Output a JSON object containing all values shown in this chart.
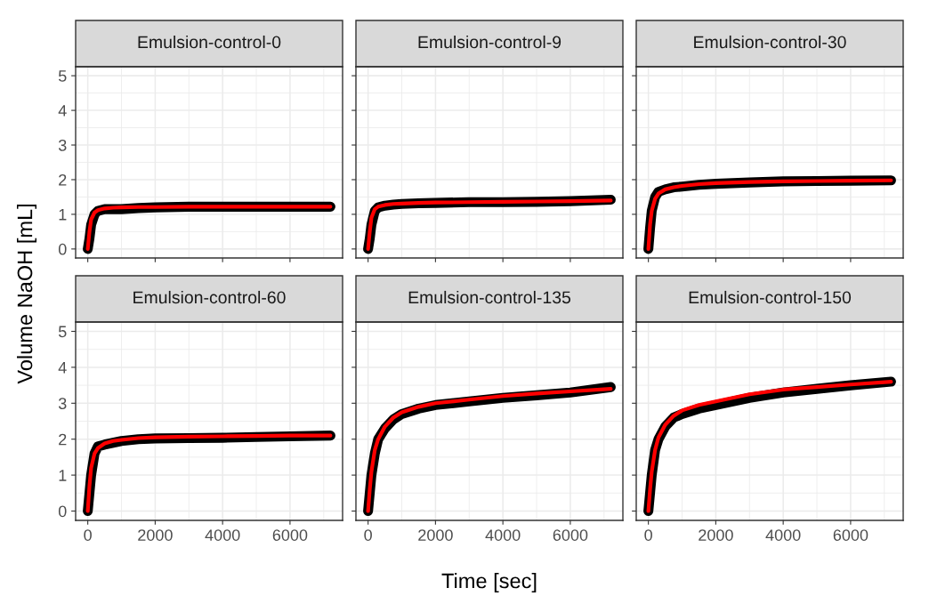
{
  "chart_data": [
    {
      "type": "line",
      "title": "Emulsion-control-0",
      "ylabel": "Volume NaOH [mL]",
      "x": [
        0,
        50,
        100,
        200,
        300,
        500,
        750,
        1000,
        1500,
        2000,
        3000,
        4000,
        5000,
        6000,
        7200
      ],
      "xlim": [
        -360,
        7560
      ],
      "xticks": [
        0,
        2000,
        4000,
        6000
      ],
      "ylim": [
        -0.26,
        5.26
      ],
      "yticks": [
        0,
        1,
        2,
        3,
        4,
        5
      ],
      "grid": true,
      "tick_labels": "y",
      "series": [
        {
          "color": "#000000",
          "values": [
            0,
            0.3,
            0.7,
            1.0,
            1.1,
            1.15,
            1.15,
            1.15,
            1.18,
            1.2,
            1.22,
            1.22,
            1.22,
            1.22,
            1.22
          ]
        },
        {
          "color": "#ff0000",
          "values": [
            0,
            0.5,
            0.85,
            1.05,
            1.12,
            1.17,
            1.19,
            1.2,
            1.21,
            1.21,
            1.22,
            1.22,
            1.22,
            1.22,
            1.22
          ]
        }
      ]
    },
    {
      "type": "line",
      "title": "Emulsion-control-9",
      "x": [
        0,
        50,
        100,
        200,
        300,
        500,
        750,
        1000,
        1500,
        2000,
        3000,
        4000,
        5000,
        6000,
        7200
      ],
      "xlim": [
        -360,
        7560
      ],
      "xticks": [
        0,
        2000,
        4000,
        6000
      ],
      "ylim": [
        -0.26,
        5.26
      ],
      "yticks": [
        0,
        1,
        2,
        3,
        4,
        5
      ],
      "grid": true,
      "tick_labels": false,
      "series": [
        {
          "color": "#000000",
          "values": [
            0,
            0.3,
            0.7,
            1.1,
            1.2,
            1.25,
            1.28,
            1.3,
            1.32,
            1.33,
            1.35,
            1.35,
            1.36,
            1.38,
            1.42
          ]
        },
        {
          "color": "#ff0000",
          "values": [
            0,
            0.5,
            0.9,
            1.15,
            1.22,
            1.27,
            1.3,
            1.31,
            1.33,
            1.34,
            1.35,
            1.36,
            1.37,
            1.38,
            1.4
          ]
        }
      ]
    },
    {
      "type": "line",
      "title": "Emulsion-control-30",
      "x": [
        0,
        50,
        100,
        200,
        300,
        500,
        750,
        1000,
        1500,
        2000,
        3000,
        4000,
        5000,
        6000,
        7200
      ],
      "xlim": [
        -360,
        7560
      ],
      "xticks": [
        0,
        2000,
        4000,
        6000
      ],
      "ylim": [
        -0.26,
        5.26
      ],
      "yticks": [
        0,
        1,
        2,
        3,
        4,
        5
      ],
      "grid": true,
      "tick_labels": false,
      "series": [
        {
          "color": "#000000",
          "values": [
            0,
            0.6,
            1.1,
            1.5,
            1.65,
            1.72,
            1.78,
            1.8,
            1.85,
            1.88,
            1.92,
            1.95,
            1.96,
            1.97,
            1.98
          ]
        },
        {
          "color": "#ff0000",
          "values": [
            0,
            0.7,
            1.1,
            1.45,
            1.6,
            1.72,
            1.78,
            1.82,
            1.87,
            1.9,
            1.93,
            1.95,
            1.96,
            1.97,
            1.98
          ]
        }
      ]
    },
    {
      "type": "line",
      "title": "Emulsion-control-60",
      "x": [
        0,
        50,
        100,
        200,
        300,
        500,
        750,
        1000,
        1500,
        2000,
        3000,
        4000,
        5000,
        6000,
        7200
      ],
      "xlim": [
        -360,
        7560
      ],
      "xticks": [
        0,
        2000,
        4000,
        6000
      ],
      "ylim": [
        -0.26,
        5.26
      ],
      "yticks": [
        0,
        1,
        2,
        3,
        4,
        5
      ],
      "grid": true,
      "series": [
        {
          "color": "#000000",
          "values": [
            0,
            0.5,
            1.0,
            1.6,
            1.8,
            1.85,
            1.9,
            1.95,
            2.0,
            2.02,
            2.03,
            2.04,
            2.06,
            2.08,
            2.1
          ]
        },
        {
          "color": "#ff0000",
          "values": [
            0,
            0.7,
            1.2,
            1.6,
            1.75,
            1.88,
            1.95,
            1.98,
            2.03,
            2.05,
            2.07,
            2.08,
            2.09,
            2.1,
            2.1
          ]
        }
      ]
    },
    {
      "type": "line",
      "title": "Emulsion-control-135",
      "xlabel": "Time [sec]",
      "x": [
        0,
        50,
        100,
        200,
        300,
        500,
        750,
        1000,
        1500,
        2000,
        3000,
        4000,
        5000,
        6000,
        7200
      ],
      "xlim": [
        -360,
        7560
      ],
      "xticks": [
        0,
        2000,
        4000,
        6000
      ],
      "ylim": [
        -0.26,
        5.26
      ],
      "yticks": [
        0,
        1,
        2,
        3,
        4,
        5
      ],
      "grid": true,
      "tick_labels": "x",
      "series": [
        {
          "color": "#000000",
          "values": [
            0,
            0.5,
            1.0,
            1.6,
            2.0,
            2.3,
            2.55,
            2.7,
            2.85,
            2.95,
            3.05,
            3.15,
            3.22,
            3.3,
            3.45
          ]
        },
        {
          "color": "#ff0000",
          "values": [
            0,
            0.6,
            1.1,
            1.7,
            2.0,
            2.35,
            2.6,
            2.75,
            2.9,
            3.0,
            3.1,
            3.2,
            3.27,
            3.33,
            3.4
          ]
        }
      ]
    },
    {
      "type": "line",
      "title": "Emulsion-control-150",
      "x": [
        0,
        50,
        100,
        200,
        300,
        500,
        750,
        1000,
        1500,
        2000,
        3000,
        4000,
        5000,
        6000,
        7200
      ],
      "xlim": [
        -360,
        7560
      ],
      "xticks": [
        0,
        2000,
        4000,
        6000
      ],
      "ylim": [
        -0.26,
        5.26
      ],
      "yticks": [
        0,
        1,
        2,
        3,
        4,
        5
      ],
      "grid": true,
      "tick_labels": "x",
      "series": [
        {
          "color": "#000000",
          "values": [
            0,
            0.5,
            1.0,
            1.7,
            2.0,
            2.35,
            2.6,
            2.7,
            2.85,
            2.95,
            3.15,
            3.3,
            3.4,
            3.5,
            3.6
          ]
        },
        {
          "color": "#ff0000",
          "values": [
            0,
            0.6,
            1.1,
            1.7,
            2.05,
            2.4,
            2.65,
            2.8,
            2.95,
            3.05,
            3.25,
            3.38,
            3.45,
            3.52,
            3.6
          ]
        }
      ]
    }
  ]
}
